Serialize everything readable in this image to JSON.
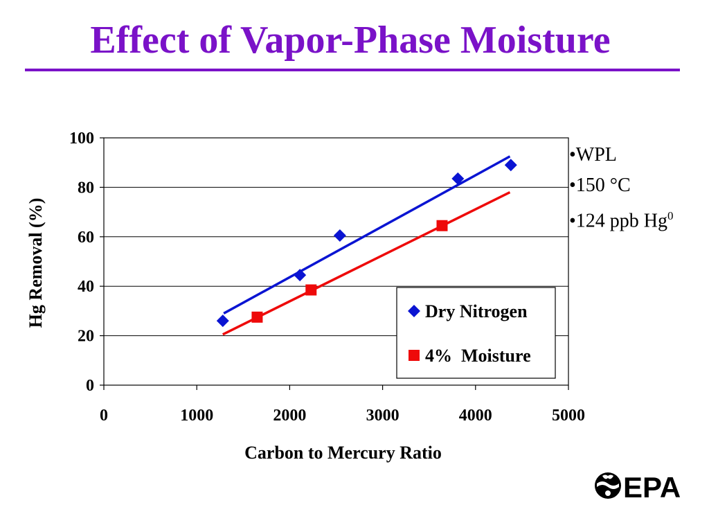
{
  "slide": {
    "title": "Effect of Vapor-Phase Moisture",
    "title_color": "#7a12c8",
    "notes": [
      {
        "text": "•WPL",
        "sup": ""
      },
      {
        "text": "•150 °C",
        "sup": ""
      },
      {
        "text": "•124 ppb Hg",
        "sup": "0"
      }
    ],
    "logo": {
      "name": "epa-logo",
      "text": "EPA"
    }
  },
  "chart_data": {
    "type": "scatter",
    "xlabel": "Carbon to Mercury Ratio",
    "ylabel": "Hg Removal (%)",
    "xlim": [
      0,
      5000
    ],
    "ylim": [
      0,
      100
    ],
    "xticks": [
      "0",
      "1000",
      "2000",
      "3000",
      "4000",
      "5000"
    ],
    "yticks": [
      "0",
      "20",
      "40",
      "60",
      "80",
      "100"
    ],
    "grid": "horizontal",
    "legend_position": "lower-right",
    "series": [
      {
        "name": "Dry Nitrogen",
        "marker": "diamond",
        "color": "#0a14d2",
        "points": [
          [
            1280,
            26
          ],
          [
            2110,
            44.5
          ],
          [
            2540,
            60.5
          ],
          [
            3810,
            83.5
          ],
          [
            4380,
            89
          ]
        ],
        "trendline": [
          [
            1290,
            29
          ],
          [
            4370,
            92.5
          ]
        ]
      },
      {
        "name": "4%  Moisture",
        "marker": "square",
        "color": "#ee0a0a",
        "points": [
          [
            1650,
            27.5
          ],
          [
            2230,
            38.5
          ],
          [
            3640,
            64.5
          ]
        ],
        "trendline": [
          [
            1280,
            20.5
          ],
          [
            4370,
            78
          ]
        ]
      }
    ]
  }
}
